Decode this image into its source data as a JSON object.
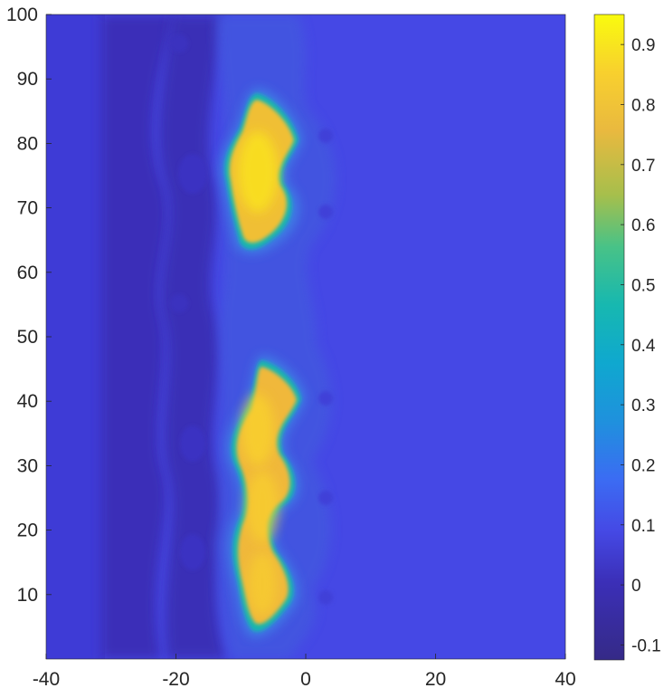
{
  "chart_data": {
    "type": "heatmap",
    "title": "",
    "xlabel": "",
    "ylabel": "",
    "xlim": [
      -40,
      40
    ],
    "ylim": [
      0,
      100
    ],
    "x_ticks": [
      -40,
      -20,
      0,
      20,
      40
    ],
    "y_ticks": [
      10,
      20,
      30,
      40,
      50,
      60,
      70,
      80,
      90,
      100
    ],
    "colorbar": {
      "range": [
        -0.125,
        0.95
      ],
      "ticks": [
        -0.1,
        0,
        0.1,
        0.2,
        0.3,
        0.4,
        0.5,
        0.6,
        0.7,
        0.8,
        0.9
      ],
      "tick_labels": [
        "-0.1",
        "0",
        "0.1",
        "0.2",
        "0.3",
        "0.4",
        "0.5",
        "0.6",
        "0.7",
        "0.8",
        "0.9"
      ],
      "colormap": "parula"
    },
    "background_value": 0.0,
    "hot_regions": [
      {
        "x_center": -6,
        "y_from": 63,
        "y_to": 86,
        "peak": 0.95
      },
      {
        "x_center": -6,
        "y_from": 4,
        "y_to": 45,
        "peak": 0.9
      }
    ],
    "trough_band": {
      "x_from": -30,
      "x_to": -12,
      "value": -0.1
    },
    "grid": false,
    "legend": "none"
  }
}
